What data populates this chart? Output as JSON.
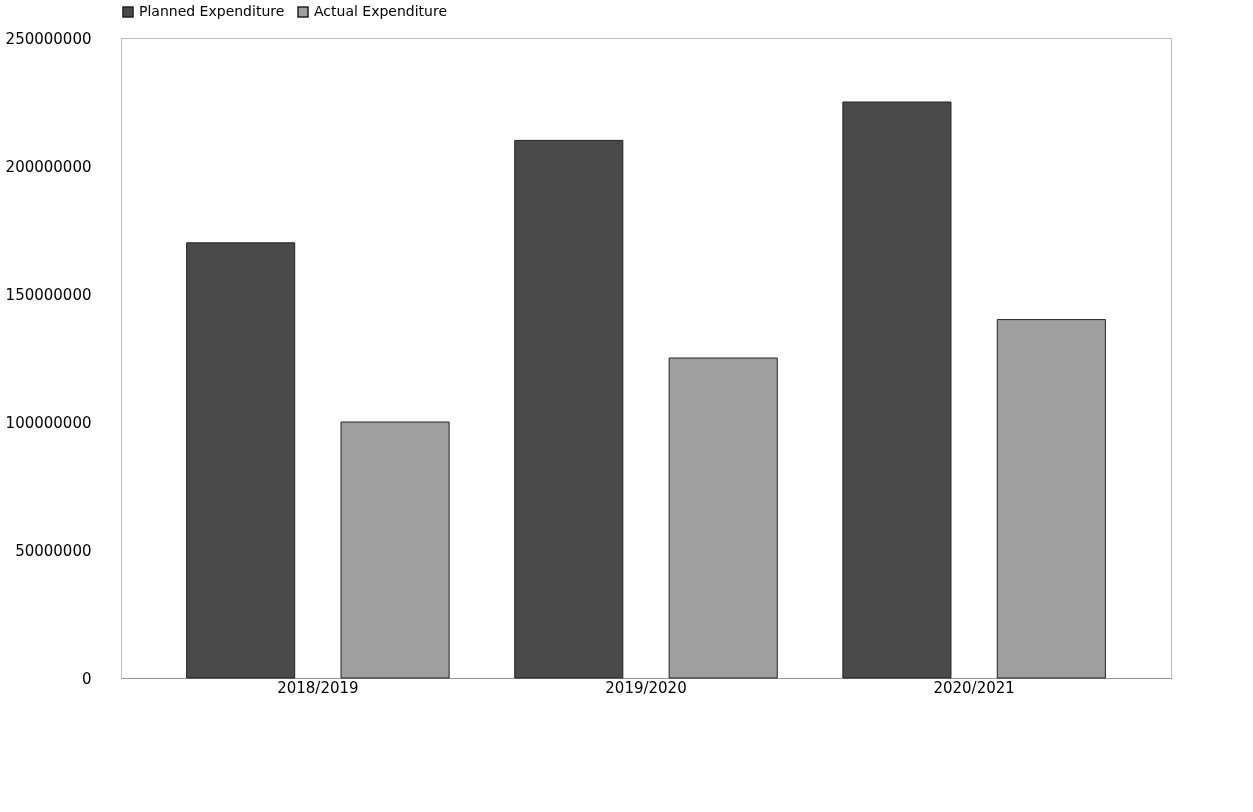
{
  "chart_data": {
    "type": "bar",
    "categories": [
      "2018/2019",
      "2019/2020",
      "2020/2021"
    ],
    "series": [
      {
        "name": "Planned Expenditure",
        "color": "#4a4a4a",
        "values": [
          170000000,
          210000000,
          225000000
        ]
      },
      {
        "name": "Actual Expenditure",
        "color": "#a0a0a0",
        "values": [
          100000000,
          125000000,
          140000000
        ]
      }
    ],
    "ylim": [
      0,
      250000000
    ],
    "yticks": [
      0,
      50000000,
      100000000,
      150000000,
      200000000,
      250000000
    ],
    "grid": false,
    "legend": "top"
  }
}
